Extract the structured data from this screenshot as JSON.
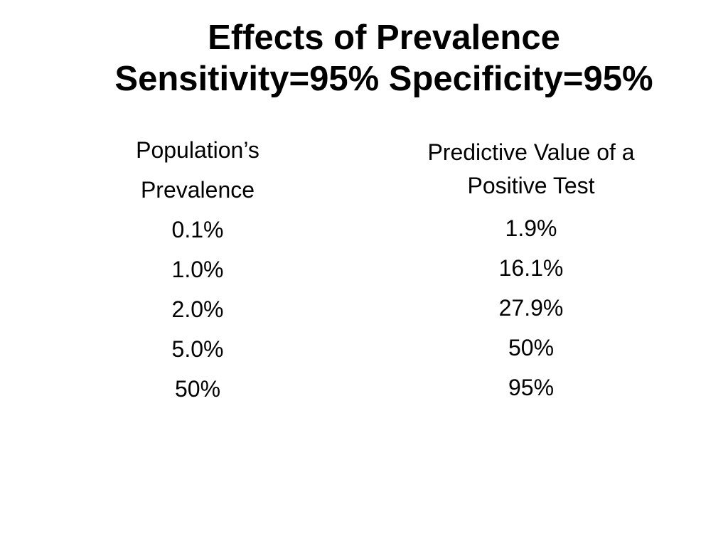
{
  "slide": {
    "title_line1": "Effects of Prevalence",
    "title_line2": "Sensitivity=95% Specificity=95%",
    "left_column": {
      "header_line1": "Population’s",
      "header_line2": "Prevalence",
      "values": [
        "0.1%",
        "1.0%",
        "2.0%",
        "5.0%",
        "50%"
      ]
    },
    "right_column": {
      "header_line1": "Predictive Value of a",
      "header_line2": "Positive Test",
      "values": [
        "1.9%",
        "16.1%",
        "27.9%",
        "50%",
        "95%"
      ]
    }
  }
}
